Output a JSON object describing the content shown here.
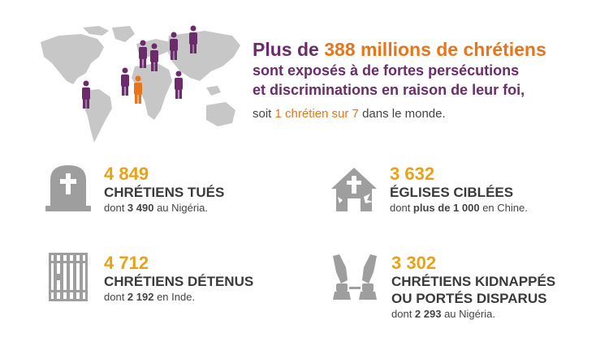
{
  "headline": {
    "line1_pre": "Plus de ",
    "line1_hl": "388 millions de chrétiens",
    "line2": "sont exposés à de fortes persécutions",
    "line3": "et discriminations en raison de leur foi,",
    "line4_pre": "soit ",
    "line4_hl": "1 chrétien sur 7",
    "line4_post": " dans le monde."
  },
  "stats": {
    "killed": {
      "number": "4 849",
      "label": "CHRÉTIENS TUÉS",
      "sub_pre": "dont ",
      "sub_bold": "3 490",
      "sub_post": " au Nigéria."
    },
    "churches": {
      "number": "3 632",
      "label": "ÉGLISES CIBLÉES",
      "sub_pre": "dont ",
      "sub_bold": "plus de 1 000",
      "sub_post": " en Chine."
    },
    "detained": {
      "number": "4 712",
      "label": "CHRÉTIENS DÉTENUS",
      "sub_pre": "dont ",
      "sub_bold": "2 192",
      "sub_post": " en Inde."
    },
    "kidnapped": {
      "number": "3 302",
      "label1": "CHRÉTIENS KIDNAPPÉS",
      "label2": "OU PORTÉS DISPARUS",
      "sub_pre": "dont ",
      "sub_bold": "2 293",
      "sub_post": " au Nigéria."
    }
  },
  "colors": {
    "purple": "#6b2c6b",
    "orange": "#e8751a",
    "gold": "#e8a21a",
    "gray_icon": "#9e9e9e",
    "map": "#c7c7c7"
  },
  "icons": [
    "world-map-icon",
    "tombstone-icon",
    "church-icon",
    "prison-bars-icon",
    "handcuffs-icon"
  ]
}
